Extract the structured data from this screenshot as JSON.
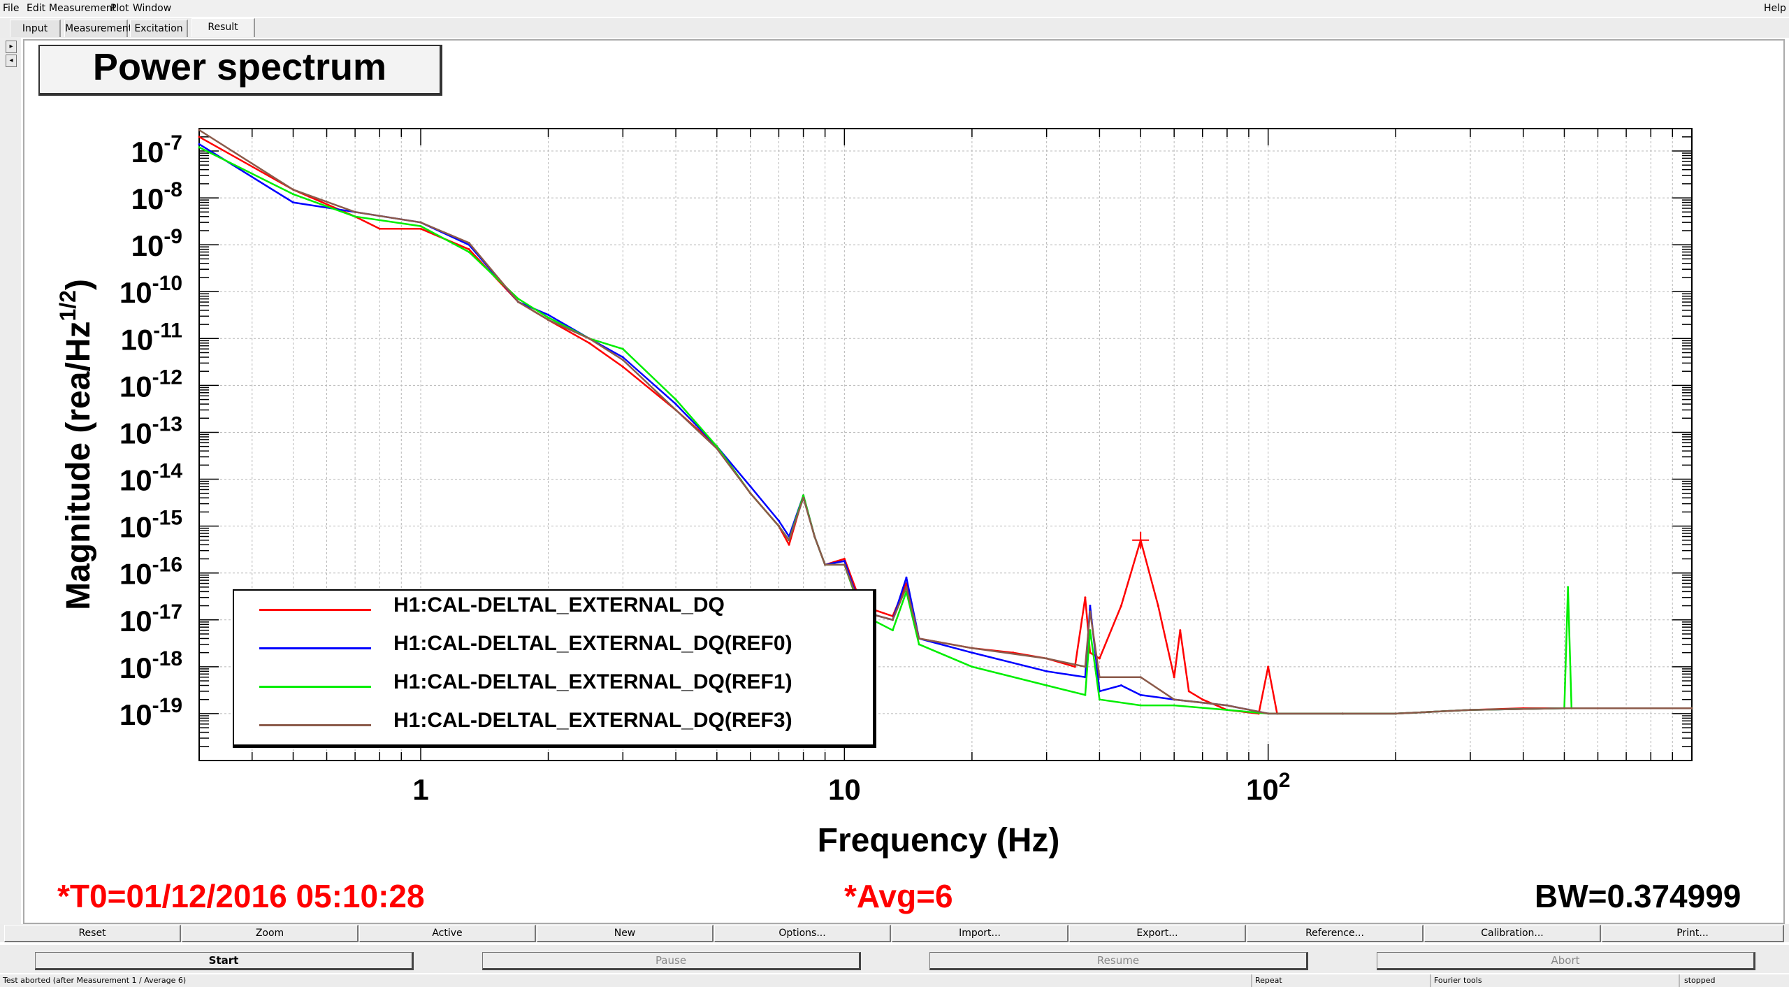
{
  "menu": {
    "file": "File",
    "edit": "Edit",
    "measurement": "Measurement",
    "plot": "Plot",
    "window": "Window",
    "help": "Help"
  },
  "tabs": [
    "Input",
    "Measurement",
    "Excitation",
    "Result"
  ],
  "active_tab": "Result",
  "plot_title": "Power spectrum",
  "legend": [
    {
      "label": "H1:CAL-DELTAL_EXTERNAL_DQ",
      "color": "#ff0000"
    },
    {
      "label": "H1:CAL-DELTAL_EXTERNAL_DQ(REF0)",
      "color": "#0000ff"
    },
    {
      "label": "H1:CAL-DELTAL_EXTERNAL_DQ(REF1)",
      "color": "#00ee00"
    },
    {
      "label": "H1:CAL-DELTAL_EXTERNAL_DQ(REF3)",
      "color": "#8b5a4a"
    }
  ],
  "status": {
    "t0": "*T0=01/12/2016 05:10:28",
    "avg": "*Avg=6",
    "bw": "BW=0.374999"
  },
  "buttons_row1": [
    "Reset",
    "Zoom",
    "Active",
    "New",
    "Options...",
    "Import...",
    "Export...",
    "Reference...",
    "Calibration...",
    "Print..."
  ],
  "buttons_row2": [
    "Start",
    "Pause",
    "Resume",
    "Abort"
  ],
  "statusbar": {
    "message": "Test aborted (after Measurement 1 / Average 6)",
    "repeat": "Repeat",
    "fourier": "Fourier tools",
    "state": "stopped"
  },
  "chart_data": {
    "type": "line",
    "title": "Power spectrum",
    "xlabel": "Frequency (Hz)",
    "ylabel": "Magnitude (rea/Hz^1/2)",
    "x_scale": "log",
    "y_scale": "log",
    "xlim": [
      0.3,
      1000
    ],
    "ylim": [
      1e-20,
      3e-07
    ],
    "x_tick_labels": [
      "1",
      "10",
      "10^2"
    ],
    "y_tick_labels": [
      "10^-7",
      "10^-8",
      "10^-9",
      "10^-10",
      "10^-11",
      "10^-12",
      "10^-13",
      "10^-14",
      "10^-15",
      "10^-16",
      "10^-17",
      "10^-18",
      "10^-19"
    ],
    "grid": true,
    "legend_position": "bottom-left",
    "series": [
      {
        "name": "H1:CAL-DELTAL_EXTERNAL_DQ",
        "color": "#ff0000",
        "x": [
          0.3,
          0.5,
          0.7,
          0.8,
          1.0,
          1.3,
          1.7,
          2.0,
          2.5,
          3.0,
          4.0,
          5.0,
          6.0,
          7.0,
          7.4,
          8.0,
          8.5,
          9.0,
          10.0,
          11.0,
          13.0,
          14.0,
          15.0,
          20.0,
          25.0,
          30.0,
          35.0,
          37.0,
          38.0,
          40.0,
          45.0,
          50.0,
          55.0,
          60.0,
          62.0,
          65.0,
          70.0,
          80.0,
          95.0,
          100.0,
          105.0,
          150.0,
          200.0,
          300.0,
          400.0,
          500.0,
          600.0,
          1000.0
        ],
        "y": [
          2e-07,
          1.5e-08,
          4e-09,
          2.2e-09,
          2.2e-09,
          8e-10,
          6e-11,
          2.5e-11,
          8e-12,
          2.5e-12,
          3e-13,
          5e-14,
          5e-15,
          1e-15,
          4e-16,
          4.5e-15,
          6e-16,
          1.5e-16,
          2e-16,
          2e-17,
          1.2e-17,
          6e-17,
          4e-18,
          2.5e-18,
          2e-18,
          1.5e-18,
          1e-18,
          3e-17,
          2e-18,
          1.5e-18,
          2e-17,
          5e-16,
          2e-17,
          6e-19,
          6e-18,
          3e-19,
          2e-19,
          1.2e-19,
          1e-19,
          1e-18,
          1e-19,
          1e-19,
          1e-19,
          1.2e-19,
          1.3e-19,
          1.3e-19,
          1.3e-19,
          1.3e-19
        ]
      },
      {
        "name": "H1:CAL-DELTAL_EXTERNAL_DQ(REF0)",
        "color": "#0000ff",
        "x": [
          0.3,
          0.5,
          0.7,
          1.0,
          1.3,
          1.7,
          2.0,
          2.5,
          3.0,
          4.0,
          5.0,
          6.0,
          7.0,
          7.4,
          8.0,
          8.5,
          9.0,
          10.0,
          11.0,
          13.0,
          14.0,
          15.0,
          20.0,
          30.0,
          37.0,
          38.0,
          40.0,
          45.0,
          50.0,
          60.0,
          80.0,
          100.0,
          150.0,
          200.0,
          300.0,
          500.0,
          1000.0
        ],
        "y": [
          1.4e-07,
          8e-09,
          5e-09,
          3e-09,
          1e-09,
          6e-11,
          3.2e-11,
          1e-11,
          4e-12,
          4e-13,
          5e-14,
          7e-15,
          1.3e-15,
          6e-16,
          4.5e-15,
          6e-16,
          1.5e-16,
          1.8e-16,
          1.5e-17,
          1e-17,
          8e-17,
          4e-18,
          2e-18,
          8e-19,
          6e-19,
          2e-17,
          3e-19,
          4e-19,
          2.5e-19,
          2e-19,
          1.5e-19,
          1e-19,
          1e-19,
          1e-19,
          1.2e-19,
          1.3e-19,
          1.3e-19
        ]
      },
      {
        "name": "H1:CAL-DELTAL_EXTERNAL_DQ(REF1)",
        "color": "#00ee00",
        "x": [
          0.3,
          0.5,
          0.7,
          1.0,
          1.3,
          1.7,
          2.0,
          2.5,
          3.0,
          4.0,
          5.0,
          6.0,
          7.0,
          7.4,
          8.0,
          8.5,
          9.0,
          10.0,
          11.0,
          13.0,
          14.0,
          15.0,
          20.0,
          30.0,
          37.0,
          38.0,
          40.0,
          50.0,
          60.0,
          80.0,
          100.0,
          150.0,
          200.0,
          300.0,
          500.0,
          510.0,
          520.0,
          1000.0
        ],
        "y": [
          1.2e-07,
          1.2e-08,
          4e-09,
          2.5e-09,
          7e-10,
          7e-11,
          2.8e-11,
          1e-11,
          6e-12,
          5e-13,
          5e-14,
          5e-15,
          1e-15,
          5e-16,
          4.5e-15,
          6e-16,
          1.5e-16,
          1.5e-16,
          1.3e-17,
          6e-18,
          4e-17,
          3e-18,
          1e-18,
          4e-19,
          2.5e-19,
          6e-18,
          2e-19,
          1.5e-19,
          1.5e-19,
          1.2e-19,
          1e-19,
          1e-19,
          1e-19,
          1.2e-19,
          1.3e-19,
          5e-17,
          1.3e-19,
          1.3e-19
        ]
      },
      {
        "name": "H1:CAL-DELTAL_EXTERNAL_DQ(REF3)",
        "color": "#8b5a4a",
        "x": [
          0.3,
          0.5,
          0.7,
          1.0,
          1.3,
          1.7,
          2.0,
          2.5,
          3.0,
          4.0,
          5.0,
          6.0,
          7.0,
          7.4,
          8.0,
          8.5,
          9.0,
          10.0,
          11.0,
          13.0,
          14.0,
          15.0,
          20.0,
          30.0,
          37.0,
          38.0,
          40.0,
          50.0,
          60.0,
          80.0,
          100.0,
          150.0,
          200.0,
          300.0,
          500.0,
          1000.0
        ],
        "y": [
          2.8e-07,
          1.5e-08,
          5e-09,
          3e-09,
          1.1e-09,
          6e-11,
          2.5e-11,
          1e-11,
          3.5e-12,
          3e-13,
          4.5e-14,
          5e-15,
          1e-15,
          5e-16,
          4e-15,
          6e-16,
          1.5e-16,
          1.5e-16,
          1.5e-17,
          1e-17,
          5e-17,
          4e-18,
          2.5e-18,
          1.5e-18,
          1e-18,
          1.5e-17,
          6e-19,
          6e-19,
          2e-19,
          1.5e-19,
          1e-19,
          1e-19,
          1e-19,
          1.2e-19,
          1.3e-19,
          1.3e-19
        ]
      }
    ]
  }
}
